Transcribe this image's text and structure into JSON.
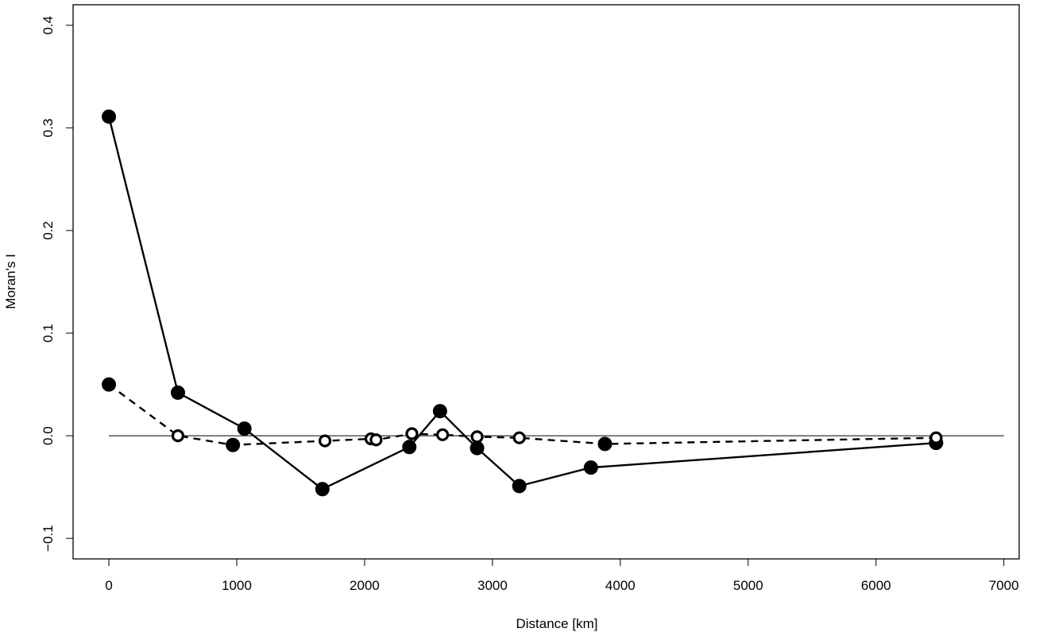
{
  "chart_data": {
    "type": "line",
    "xlabel": "Distance [km]",
    "ylabel": "Moran's I",
    "xlim": [
      -280,
      7120
    ],
    "ylim": [
      -0.12,
      0.42
    ],
    "xticks": [
      0,
      1000,
      2000,
      3000,
      4000,
      5000,
      6000,
      7000
    ],
    "yticks": [
      -0.1,
      0.0,
      0.1,
      0.2,
      0.3,
      0.4
    ],
    "xtick_labels": [
      "0",
      "1000",
      "2000",
      "3000",
      "4000",
      "5000",
      "6000",
      "7000"
    ],
    "ytick_labels": [
      "−0.1",
      "0.0",
      "0.1",
      "0.2",
      "0.3",
      "0.4"
    ],
    "reference_line": {
      "y": 0,
      "x_range": [
        0,
        7000
      ]
    },
    "grid": false,
    "legend": "none",
    "series": [
      {
        "line_style": "solid",
        "x": [
          0,
          540,
          1060,
          1670,
          2350,
          2590,
          2880,
          3210,
          3770,
          6470
        ],
        "y": [
          0.311,
          0.042,
          0.007,
          -0.052,
          -0.011,
          0.024,
          -0.012,
          -0.049,
          -0.031,
          -0.007
        ],
        "markers": [
          "filled",
          "filled",
          "filled",
          "filled",
          "filled",
          "filled",
          "filled",
          "filled",
          "filled",
          "filled"
        ]
      },
      {
        "line_style": "dashed",
        "x": [
          0,
          540,
          970,
          1690,
          2050,
          2090,
          2370,
          2610,
          2880,
          3210,
          3880,
          6470
        ],
        "y": [
          0.05,
          0.0,
          -0.009,
          -0.005,
          -0.003,
          -0.004,
          0.002,
          0.001,
          -0.001,
          -0.002,
          -0.008,
          -0.002
        ],
        "markers": [
          "filled",
          "open",
          "filled",
          "open",
          "open",
          "open",
          "open",
          "open",
          "open",
          "open",
          "filled",
          "open"
        ]
      }
    ]
  }
}
